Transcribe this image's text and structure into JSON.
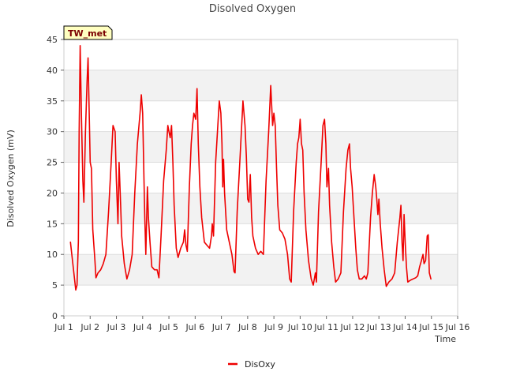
{
  "chart_data": {
    "type": "line",
    "title": "Disolved Oxygen",
    "xlabel": "Time",
    "ylabel": "Disolved Oxygen (mV)",
    "ylim": [
      0,
      45
    ],
    "yticks": [
      0,
      5,
      10,
      15,
      20,
      25,
      30,
      35,
      40,
      45
    ],
    "xlim": [
      1,
      16
    ],
    "xticks": [
      {
        "day": 1,
        "label": "Jul 1"
      },
      {
        "day": 2,
        "label": "Jul 2"
      },
      {
        "day": 3,
        "label": "Jul 3"
      },
      {
        "day": 4,
        "label": "Jul 4"
      },
      {
        "day": 5,
        "label": "Jul 5"
      },
      {
        "day": 6,
        "label": "Jul 6"
      },
      {
        "day": 7,
        "label": "Jul 7"
      },
      {
        "day": 8,
        "label": "Jul 8"
      },
      {
        "day": 9,
        "label": "Jul 9"
      },
      {
        "day": 10,
        "label": "Jul 10"
      },
      {
        "day": 11,
        "label": "Jul 11"
      },
      {
        "day": 12,
        "label": "Jul 12"
      },
      {
        "day": 13,
        "label": "Jul 13"
      },
      {
        "day": 14,
        "label": "Jul 14"
      },
      {
        "day": 15,
        "label": "Jul 15"
      },
      {
        "day": 16,
        "label": "Jul 16"
      }
    ],
    "station_label": "TW_met",
    "series": [
      {
        "name": "DisOxy",
        "color": "#ee0000",
        "points": [
          [
            1.25,
            12
          ],
          [
            1.3,
            10
          ],
          [
            1.38,
            7
          ],
          [
            1.45,
            4.2
          ],
          [
            1.5,
            5
          ],
          [
            1.55,
            12
          ],
          [
            1.58,
            30
          ],
          [
            1.62,
            44
          ],
          [
            1.67,
            32
          ],
          [
            1.72,
            22
          ],
          [
            1.76,
            18.5
          ],
          [
            1.82,
            30
          ],
          [
            1.88,
            38
          ],
          [
            1.92,
            42
          ],
          [
            1.96,
            34
          ],
          [
            2.0,
            25
          ],
          [
            2.05,
            24
          ],
          [
            2.1,
            14
          ],
          [
            2.18,
            9
          ],
          [
            2.22,
            6.2
          ],
          [
            2.3,
            7
          ],
          [
            2.4,
            7.5
          ],
          [
            2.5,
            8.5
          ],
          [
            2.6,
            10
          ],
          [
            2.7,
            17
          ],
          [
            2.8,
            25
          ],
          [
            2.87,
            31
          ],
          [
            2.95,
            30
          ],
          [
            3.0,
            22
          ],
          [
            3.06,
            15
          ],
          [
            3.1,
            25
          ],
          [
            3.16,
            18
          ],
          [
            3.2,
            13
          ],
          [
            3.3,
            8.5
          ],
          [
            3.4,
            6
          ],
          [
            3.5,
            7.5
          ],
          [
            3.6,
            10
          ],
          [
            3.7,
            20
          ],
          [
            3.8,
            28
          ],
          [
            3.9,
            33
          ],
          [
            3.95,
            36
          ],
          [
            4.0,
            33
          ],
          [
            4.05,
            22
          ],
          [
            4.08,
            16
          ],
          [
            4.12,
            10
          ],
          [
            4.18,
            21
          ],
          [
            4.22,
            16
          ],
          [
            4.28,
            12
          ],
          [
            4.35,
            8
          ],
          [
            4.45,
            7.5
          ],
          [
            4.55,
            7.5
          ],
          [
            4.62,
            6.2
          ],
          [
            4.7,
            13
          ],
          [
            4.8,
            22
          ],
          [
            4.9,
            27
          ],
          [
            4.96,
            31
          ],
          [
            5.0,
            30
          ],
          [
            5.05,
            29
          ],
          [
            5.1,
            31
          ],
          [
            5.15,
            25
          ],
          [
            5.2,
            18
          ],
          [
            5.28,
            11
          ],
          [
            5.35,
            9.5
          ],
          [
            5.45,
            11
          ],
          [
            5.55,
            12
          ],
          [
            5.6,
            14
          ],
          [
            5.65,
            11.5
          ],
          [
            5.7,
            10.5
          ],
          [
            5.78,
            21
          ],
          [
            5.85,
            28
          ],
          [
            5.9,
            31
          ],
          [
            5.95,
            33
          ],
          [
            6.02,
            32
          ],
          [
            6.07,
            37
          ],
          [
            6.12,
            28
          ],
          [
            6.18,
            21
          ],
          [
            6.25,
            16
          ],
          [
            6.35,
            12
          ],
          [
            6.45,
            11.5
          ],
          [
            6.55,
            11
          ],
          [
            6.62,
            13
          ],
          [
            6.65,
            15
          ],
          [
            6.7,
            13
          ],
          [
            6.78,
            25
          ],
          [
            6.85,
            30
          ],
          [
            6.92,
            35
          ],
          [
            6.98,
            33
          ],
          [
            7.02,
            28
          ],
          [
            7.05,
            21
          ],
          [
            7.08,
            25.5
          ],
          [
            7.12,
            20
          ],
          [
            7.2,
            14
          ],
          [
            7.3,
            12
          ],
          [
            7.4,
            10
          ],
          [
            7.48,
            7.2
          ],
          [
            7.52,
            7
          ],
          [
            7.6,
            17
          ],
          [
            7.7,
            25
          ],
          [
            7.76,
            30
          ],
          [
            7.82,
            35
          ],
          [
            7.9,
            31
          ],
          [
            7.95,
            26
          ],
          [
            8.0,
            19
          ],
          [
            8.05,
            18.5
          ],
          [
            8.1,
            23
          ],
          [
            8.15,
            16
          ],
          [
            8.2,
            13
          ],
          [
            8.3,
            11
          ],
          [
            8.4,
            10
          ],
          [
            8.5,
            10.5
          ],
          [
            8.6,
            10
          ],
          [
            8.7,
            22
          ],
          [
            8.8,
            30
          ],
          [
            8.88,
            37.5
          ],
          [
            8.95,
            31
          ],
          [
            9.0,
            33
          ],
          [
            9.05,
            31
          ],
          [
            9.1,
            24
          ],
          [
            9.15,
            18
          ],
          [
            9.22,
            14
          ],
          [
            9.32,
            13.5
          ],
          [
            9.42,
            12.5
          ],
          [
            9.52,
            10
          ],
          [
            9.6,
            6
          ],
          [
            9.66,
            5.5
          ],
          [
            9.75,
            17
          ],
          [
            9.85,
            25
          ],
          [
            9.9,
            28
          ],
          [
            9.95,
            29
          ],
          [
            10.0,
            32
          ],
          [
            10.05,
            28
          ],
          [
            10.1,
            27
          ],
          [
            10.15,
            20
          ],
          [
            10.22,
            14
          ],
          [
            10.32,
            9
          ],
          [
            10.42,
            6
          ],
          [
            10.5,
            5
          ],
          [
            10.58,
            7
          ],
          [
            10.62,
            5.5
          ],
          [
            10.7,
            17
          ],
          [
            10.8,
            25
          ],
          [
            10.87,
            31
          ],
          [
            10.93,
            32
          ],
          [
            10.98,
            28
          ],
          [
            11.02,
            21
          ],
          [
            11.08,
            24
          ],
          [
            11.12,
            18
          ],
          [
            11.2,
            12
          ],
          [
            11.28,
            8
          ],
          [
            11.35,
            5.5
          ],
          [
            11.45,
            6
          ],
          [
            11.55,
            7
          ],
          [
            11.65,
            17
          ],
          [
            11.75,
            24
          ],
          [
            11.82,
            27
          ],
          [
            11.88,
            28
          ],
          [
            11.92,
            24
          ],
          [
            11.98,
            21
          ],
          [
            12.05,
            16
          ],
          [
            12.12,
            11
          ],
          [
            12.18,
            7.5
          ],
          [
            12.25,
            6
          ],
          [
            12.35,
            6
          ],
          [
            12.45,
            6.5
          ],
          [
            12.52,
            6
          ],
          [
            12.58,
            7
          ],
          [
            12.68,
            16
          ],
          [
            12.75,
            20
          ],
          [
            12.82,
            23
          ],
          [
            12.88,
            21
          ],
          [
            12.92,
            19
          ],
          [
            12.96,
            16.5
          ],
          [
            13.0,
            19
          ],
          [
            13.05,
            15
          ],
          [
            13.12,
            11
          ],
          [
            13.2,
            7.5
          ],
          [
            13.28,
            4.8
          ],
          [
            13.38,
            5.5
          ],
          [
            13.5,
            6
          ],
          [
            13.6,
            7
          ],
          [
            13.7,
            12
          ],
          [
            13.8,
            16
          ],
          [
            13.84,
            18
          ],
          [
            13.88,
            12
          ],
          [
            13.92,
            9
          ],
          [
            13.96,
            16.5
          ],
          [
            14.0,
            12
          ],
          [
            14.05,
            8
          ],
          [
            14.1,
            5.5
          ],
          [
            14.2,
            5.8
          ],
          [
            14.3,
            6
          ],
          [
            14.4,
            6.2
          ],
          [
            14.48,
            6.5
          ],
          [
            14.55,
            8
          ],
          [
            14.62,
            9
          ],
          [
            14.68,
            10
          ],
          [
            14.72,
            8.5
          ],
          [
            14.78,
            9
          ],
          [
            14.84,
            13
          ],
          [
            14.88,
            13.2
          ],
          [
            14.92,
            7
          ],
          [
            14.98,
            6
          ]
        ]
      }
    ],
    "legend": {
      "position": "bottom-center"
    }
  }
}
